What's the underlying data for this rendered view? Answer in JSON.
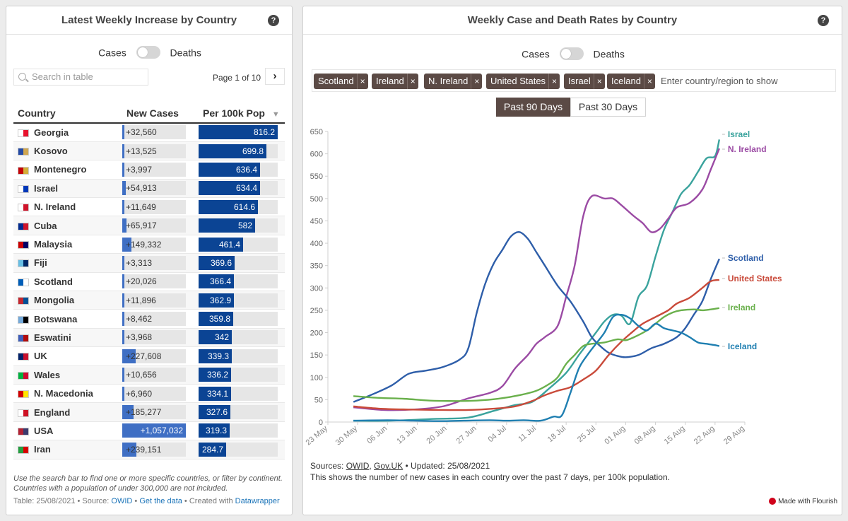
{
  "left_panel": {
    "title": "Latest Weekly Increase by Country",
    "help": "?",
    "toggle": {
      "left": "Cases",
      "right": "Deaths"
    },
    "search_placeholder": "Search in table",
    "pager": "Page 1 of 10",
    "pager_next": "›",
    "columns": [
      "Country",
      "New Cases",
      "Per 100k Pop"
    ],
    "sort_indicator": "▼",
    "new_cases_max": 1057032,
    "per100k_max": 816.2,
    "rows": [
      {
        "country": "Georgia",
        "new_cases": 32560,
        "new_cases_label": "+32,560",
        "per100k": 816.2,
        "per100k_label": "816.2",
        "flag": [
          "#ffffff",
          "#e8112d"
        ]
      },
      {
        "country": "Kosovo",
        "new_cases": 13525,
        "new_cases_label": "+13,525",
        "per100k": 699.8,
        "per100k_label": "699.8",
        "flag": [
          "#244aa5",
          "#d0a650"
        ]
      },
      {
        "country": "Montenegro",
        "new_cases": 3997,
        "new_cases_label": "+3,997",
        "per100k": 636.4,
        "per100k_label": "636.4",
        "flag": [
          "#c40308",
          "#d4af3a"
        ]
      },
      {
        "country": "Israel",
        "new_cases": 54913,
        "new_cases_label": "+54,913",
        "per100k": 634.4,
        "per100k_label": "634.4",
        "flag": [
          "#ffffff",
          "#0038b8"
        ]
      },
      {
        "country": "N. Ireland",
        "new_cases": 11649,
        "new_cases_label": "+11,649",
        "per100k": 614.6,
        "per100k_label": "614.6",
        "flag": [
          "#ffffff",
          "#cf142b"
        ]
      },
      {
        "country": "Cuba",
        "new_cases": 65917,
        "new_cases_label": "+65,917",
        "per100k": 582,
        "per100k_label": "582",
        "flag": [
          "#002a8f",
          "#cf142b"
        ]
      },
      {
        "country": "Malaysia",
        "new_cases": 149332,
        "new_cases_label": "+149,332",
        "per100k": 461.4,
        "per100k_label": "461.4",
        "flag": [
          "#cc0001",
          "#010066"
        ]
      },
      {
        "country": "Fiji",
        "new_cases": 3313,
        "new_cases_label": "+3,313",
        "per100k": 369.6,
        "per100k_label": "369.6",
        "flag": [
          "#68bfe5",
          "#002868"
        ]
      },
      {
        "country": "Scotland",
        "new_cases": 20026,
        "new_cases_label": "+20,026",
        "per100k": 366.4,
        "per100k_label": "366.4",
        "flag": [
          "#005eb8",
          "#ffffff"
        ]
      },
      {
        "country": "Mongolia",
        "new_cases": 11896,
        "new_cases_label": "+11,896",
        "per100k": 362.9,
        "per100k_label": "362.9",
        "flag": [
          "#c4272f",
          "#015197"
        ]
      },
      {
        "country": "Botswana",
        "new_cases": 8462,
        "new_cases_label": "+8,462",
        "per100k": 359.8,
        "per100k_label": "359.8",
        "flag": [
          "#75aadb",
          "#000000"
        ]
      },
      {
        "country": "Eswatini",
        "new_cases": 3968,
        "new_cases_label": "+3,968",
        "per100k": 342,
        "per100k_label": "342",
        "flag": [
          "#3e5eb9",
          "#b10c0c"
        ]
      },
      {
        "country": "UK",
        "new_cases": 227608,
        "new_cases_label": "+227,608",
        "per100k": 339.3,
        "per100k_label": "339.3",
        "flag": [
          "#012169",
          "#c8102e"
        ]
      },
      {
        "country": "Wales",
        "new_cases": 10656,
        "new_cases_label": "+10,656",
        "per100k": 336.2,
        "per100k_label": "336.2",
        "flag": [
          "#00b140",
          "#d30731"
        ]
      },
      {
        "country": "N. Macedonia",
        "new_cases": 6960,
        "new_cases_label": "+6,960",
        "per100k": 334.1,
        "per100k_label": "334.1",
        "flag": [
          "#d20000",
          "#ffe600"
        ]
      },
      {
        "country": "England",
        "new_cases": 185277,
        "new_cases_label": "+185,277",
        "per100k": 327.6,
        "per100k_label": "327.6",
        "flag": [
          "#ffffff",
          "#ce1124"
        ]
      },
      {
        "country": "USA",
        "new_cases": 1057032,
        "new_cases_label": "+1,057,032",
        "per100k": 319.3,
        "per100k_label": "319.3",
        "flag": [
          "#b22234",
          "#3c3b6e"
        ]
      },
      {
        "country": "Iran",
        "new_cases": 239151,
        "new_cases_label": "+239,151",
        "per100k": 284.7,
        "per100k_label": "284.7",
        "flag": [
          "#239f40",
          "#da0000"
        ]
      }
    ],
    "note": "Use the search bar to find one or more specific countries, or filter by continent. Countries with a population of under 300,000 are not included.",
    "footer": {
      "date": "Table: 25/08/2021 • Source: ",
      "source": "OWID",
      "sep1": " • ",
      "get_data": "Get the data",
      "sep2": " • Created with ",
      "tool": "Datawrapper"
    }
  },
  "right_panel": {
    "title": "Weekly Case and Death Rates by Country",
    "help": "?",
    "toggle": {
      "left": "Cases",
      "right": "Deaths"
    },
    "chips": [
      "Scotland",
      "Ireland",
      "N. Ireland",
      "United States",
      "Israel",
      "Iceland"
    ],
    "chip_remove": "×",
    "chip_input_placeholder": "Enter country/region to show",
    "range_buttons": [
      "Past 90 Days",
      "Past 30 Days"
    ],
    "active_range": 0,
    "sources_prefix": "Sources: ",
    "source_owid": "OWID",
    "source_sep": ", ",
    "source_gov": "Gov.UK",
    "updated": " • Updated: 25/08/2021",
    "description": "This shows the number of new cases in each country over the past 7 days, per 100k population.",
    "made_with": "Made with Flourish"
  },
  "chart_data": {
    "type": "line",
    "title": "Weekly Case and Death Rates by Country",
    "xlabel": "",
    "ylabel": "",
    "ylim": [
      0,
      650
    ],
    "y_ticks": [
      0,
      50,
      100,
      150,
      200,
      250,
      300,
      350,
      400,
      450,
      500,
      550,
      600,
      650
    ],
    "x_tick_labels": [
      "23 May",
      "30 May",
      "06 Jun",
      "13 Jun",
      "20 Jun",
      "27 Jun",
      "04 Jul",
      "11 Jul",
      "18 Jul",
      "25 Jul",
      "01 Aug",
      "08 Aug",
      "15 Aug",
      "22 Aug",
      "29 Aug"
    ],
    "x_unit": "days since 23 May",
    "xlim": [
      0,
      98
    ],
    "grid": false,
    "legend": "end-of-line labels",
    "series": [
      {
        "name": "Israel",
        "color": "#3aa39d",
        "points": [
          [
            6,
            3
          ],
          [
            15,
            3
          ],
          [
            25,
            7
          ],
          [
            33,
            10
          ],
          [
            39,
            25
          ],
          [
            44,
            38
          ],
          [
            48,
            45
          ],
          [
            52,
            75
          ],
          [
            56,
            110
          ],
          [
            59,
            150
          ],
          [
            61,
            175
          ],
          [
            63,
            200
          ],
          [
            65,
            225
          ],
          [
            67,
            240
          ],
          [
            69,
            238
          ],
          [
            71,
            220
          ],
          [
            73,
            280
          ],
          [
            75,
            305
          ],
          [
            77,
            370
          ],
          [
            79,
            430
          ],
          [
            81,
            470
          ],
          [
            83,
            510
          ],
          [
            85,
            530
          ],
          [
            87,
            560
          ],
          [
            89,
            590
          ],
          [
            91,
            595
          ],
          [
            92,
            632
          ]
        ]
      },
      {
        "name": "N. Ireland",
        "color": "#9b4ba4",
        "points": [
          [
            6,
            33
          ],
          [
            13,
            27
          ],
          [
            20,
            28
          ],
          [
            27,
            35
          ],
          [
            33,
            53
          ],
          [
            38,
            65
          ],
          [
            41,
            80
          ],
          [
            44,
            120
          ],
          [
            47,
            150
          ],
          [
            49,
            175
          ],
          [
            51,
            190
          ],
          [
            54,
            215
          ],
          [
            56,
            280
          ],
          [
            58,
            350
          ],
          [
            60,
            460
          ],
          [
            62,
            505
          ],
          [
            65,
            500
          ],
          [
            67,
            500
          ],
          [
            69,
            485
          ],
          [
            72,
            460
          ],
          [
            74,
            445
          ],
          [
            76,
            425
          ],
          [
            78,
            432
          ],
          [
            80,
            455
          ],
          [
            82,
            480
          ],
          [
            85,
            490
          ],
          [
            88,
            520
          ],
          [
            90,
            565
          ],
          [
            92,
            612
          ]
        ]
      },
      {
        "name": "Scotland",
        "color": "#2e5ea9",
        "points": [
          [
            6,
            45
          ],
          [
            10,
            60
          ],
          [
            15,
            82
          ],
          [
            19,
            108
          ],
          [
            23,
            115
          ],
          [
            27,
            123
          ],
          [
            31,
            140
          ],
          [
            33,
            165
          ],
          [
            35,
            245
          ],
          [
            37,
            310
          ],
          [
            39,
            355
          ],
          [
            41,
            385
          ],
          [
            43,
            415
          ],
          [
            45,
            425
          ],
          [
            47,
            410
          ],
          [
            49,
            380
          ],
          [
            51,
            350
          ],
          [
            54,
            305
          ],
          [
            57,
            270
          ],
          [
            60,
            225
          ],
          [
            62,
            190
          ],
          [
            64,
            170
          ],
          [
            66,
            155
          ],
          [
            68,
            148
          ],
          [
            70,
            145
          ],
          [
            73,
            150
          ],
          [
            76,
            165
          ],
          [
            79,
            175
          ],
          [
            82,
            190
          ],
          [
            84,
            210
          ],
          [
            86,
            240
          ],
          [
            88,
            270
          ],
          [
            90,
            320
          ],
          [
            92,
            365
          ]
        ]
      },
      {
        "name": "United States",
        "color": "#c94a3a",
        "points": [
          [
            6,
            35
          ],
          [
            12,
            30
          ],
          [
            19,
            28
          ],
          [
            26,
            27
          ],
          [
            33,
            27
          ],
          [
            39,
            30
          ],
          [
            44,
            35
          ],
          [
            48,
            47
          ],
          [
            51,
            60
          ],
          [
            54,
            70
          ],
          [
            57,
            78
          ],
          [
            60,
            95
          ],
          [
            63,
            115
          ],
          [
            66,
            150
          ],
          [
            69,
            180
          ],
          [
            72,
            205
          ],
          [
            74,
            220
          ],
          [
            77,
            235
          ],
          [
            80,
            250
          ],
          [
            82,
            265
          ],
          [
            85,
            278
          ],
          [
            88,
            300
          ],
          [
            90,
            315
          ],
          [
            92,
            318
          ]
        ]
      },
      {
        "name": "Ireland",
        "color": "#6ab04c",
        "points": [
          [
            6,
            58
          ],
          [
            12,
            54
          ],
          [
            18,
            52
          ],
          [
            24,
            48
          ],
          [
            30,
            47
          ],
          [
            35,
            48
          ],
          [
            40,
            52
          ],
          [
            45,
            60
          ],
          [
            49,
            70
          ],
          [
            52,
            85
          ],
          [
            54,
            100
          ],
          [
            56,
            130
          ],
          [
            58,
            150
          ],
          [
            60,
            170
          ],
          [
            62,
            175
          ],
          [
            65,
            178
          ],
          [
            68,
            185
          ],
          [
            70,
            183
          ],
          [
            72,
            190
          ],
          [
            75,
            205
          ],
          [
            77,
            220
          ],
          [
            79,
            235
          ],
          [
            81,
            245
          ],
          [
            83,
            250
          ],
          [
            86,
            252
          ],
          [
            88,
            250
          ],
          [
            90,
            252
          ],
          [
            92,
            255
          ]
        ]
      },
      {
        "name": "Iceland",
        "color": "#1f7fb1",
        "points": [
          [
            6,
            3
          ],
          [
            14,
            4
          ],
          [
            20,
            3
          ],
          [
            26,
            2
          ],
          [
            32,
            3
          ],
          [
            38,
            4
          ],
          [
            42,
            3
          ],
          [
            46,
            4
          ],
          [
            50,
            3
          ],
          [
            53,
            12
          ],
          [
            55,
            15
          ],
          [
            57,
            65
          ],
          [
            59,
            120
          ],
          [
            61,
            150
          ],
          [
            63,
            175
          ],
          [
            65,
            200
          ],
          [
            67,
            235
          ],
          [
            69,
            240
          ],
          [
            71,
            232
          ],
          [
            73,
            215
          ],
          [
            75,
            205
          ],
          [
            77,
            220
          ],
          [
            79,
            210
          ],
          [
            81,
            205
          ],
          [
            83,
            200
          ],
          [
            85,
            190
          ],
          [
            87,
            178
          ],
          [
            89,
            175
          ],
          [
            91,
            172
          ],
          [
            92,
            170
          ]
        ]
      }
    ]
  }
}
